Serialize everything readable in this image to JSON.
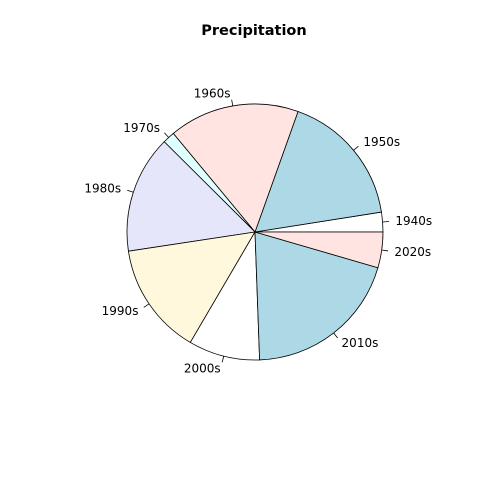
{
  "chart_data": {
    "type": "pie",
    "title": "Precipitation",
    "start_angle_deg": 0,
    "direction": "counterclockwise",
    "slices": [
      {
        "label": "1940s",
        "value": 2.6,
        "color": "#ffffff"
      },
      {
        "label": "1950s",
        "value": 17.8,
        "color": "#add8e6"
      },
      {
        "label": "1960s",
        "value": 17.2,
        "color": "#ffe4e1"
      },
      {
        "label": "1970s",
        "value": 1.6,
        "color": "#e0ffff"
      },
      {
        "label": "1980s",
        "value": 15.5,
        "color": "#e6e6fa"
      },
      {
        "label": "1990s",
        "value": 14.8,
        "color": "#fff8dc"
      },
      {
        "label": "2000s",
        "value": 9.4,
        "color": "#ffffff"
      },
      {
        "label": "2010s",
        "value": 20.8,
        "color": "#add8e6"
      },
      {
        "label": "2020s",
        "value": 4.7,
        "color": "#ffe4e1"
      }
    ]
  }
}
